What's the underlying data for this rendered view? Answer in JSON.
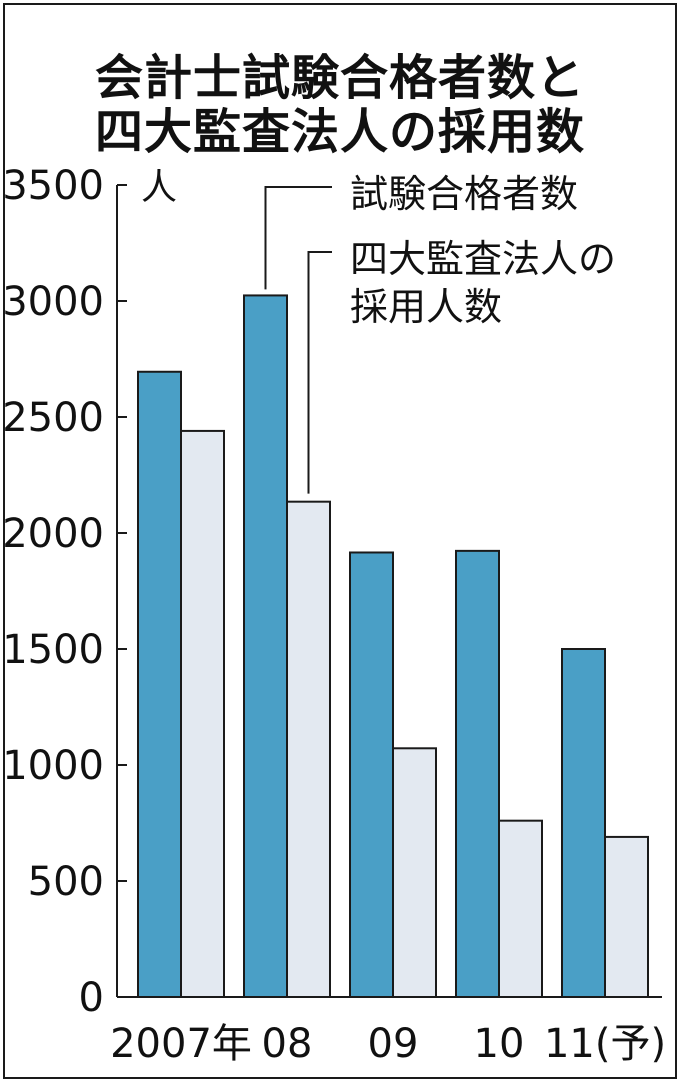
{
  "title_line1": "会計士試験合格者数と",
  "title_line2": "四大監査法人の採用数",
  "colors": {
    "series1": "#4a9fc6",
    "series2": "#e3e9f1",
    "stroke": "#1a1a1a"
  },
  "chart_data": {
    "type": "bar",
    "title": "会計士試験合格者数と四大監査法人の採用数",
    "ylabel": "人",
    "ylim": [
      0,
      3500
    ],
    "yticks": [
      0,
      500,
      1000,
      1500,
      2000,
      2500,
      3000,
      3500
    ],
    "categories": [
      "2007年",
      "08",
      "09",
      "10",
      "11(予)"
    ],
    "grid": false,
    "series": [
      {
        "name": "試験合格者数",
        "values": [
          2695,
          3024,
          1916,
          1923,
          1500
        ]
      },
      {
        "name": "四大監査法人の採用人数",
        "values": [
          2440,
          2135,
          1072,
          760,
          690
        ]
      }
    ],
    "legend": [
      {
        "lines": [
          "試験合格者数"
        ]
      },
      {
        "lines": [
          "四大監査法人の",
          "採用人数"
        ]
      }
    ]
  }
}
